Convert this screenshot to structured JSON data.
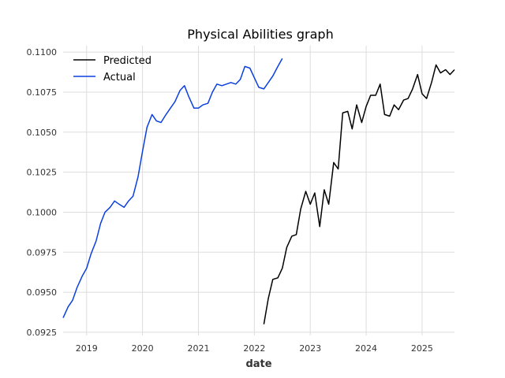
{
  "chart_data": {
    "type": "line",
    "title": "Physical Abilities graph",
    "xlabel": "date",
    "ylabel": "",
    "xlim": [
      2018.58,
      2025.58
    ],
    "ylim": [
      0.0923,
      0.1104
    ],
    "x_ticks": [
      2019,
      2020,
      2021,
      2022,
      2023,
      2024,
      2025
    ],
    "x_tick_labels": [
      "2019",
      "2020",
      "2021",
      "2022",
      "2023",
      "2024",
      "2025"
    ],
    "y_ticks": [
      0.0925,
      0.095,
      0.0975,
      0.1,
      0.1025,
      0.105,
      0.1075,
      0.11
    ],
    "y_tick_labels": [
      "0.0925",
      "0.0950",
      "0.0975",
      "0.1000",
      "0.1025",
      "0.1050",
      "0.1075",
      "0.1100"
    ],
    "grid": true,
    "legend_position": "top-left",
    "series": [
      {
        "name": "Predicted",
        "color": "#000000",
        "x": [
          2022.17,
          2022.25,
          2022.33,
          2022.42,
          2022.5,
          2022.58,
          2022.67,
          2022.75,
          2022.83,
          2022.92,
          2023.0,
          2023.08,
          2023.17,
          2023.25,
          2023.33,
          2023.42,
          2023.5,
          2023.58,
          2023.67,
          2023.75,
          2023.83,
          2023.92,
          2024.0,
          2024.08,
          2024.17,
          2024.25,
          2024.33,
          2024.42,
          2024.5,
          2024.58,
          2024.67,
          2024.75,
          2024.83,
          2024.92,
          2025.0,
          2025.08,
          2025.17,
          2025.25,
          2025.33,
          2025.42,
          2025.5,
          2025.58
        ],
        "y": [
          0.093,
          0.0946,
          0.0958,
          0.0959,
          0.0965,
          0.0978,
          0.0985,
          0.0986,
          0.1002,
          0.1013,
          0.1005,
          0.1012,
          0.0991,
          0.1014,
          0.1005,
          0.1031,
          0.1027,
          0.1062,
          0.1063,
          0.1052,
          0.1067,
          0.1056,
          0.1066,
          0.1073,
          0.1073,
          0.108,
          0.1061,
          0.106,
          0.1067,
          0.1064,
          0.107,
          0.1071,
          0.1077,
          0.1086,
          0.1074,
          0.1071,
          0.1081,
          0.1092,
          0.1087,
          0.1089,
          0.1086,
          0.1089
        ]
      },
      {
        "name": "Actual",
        "color": "#0b3fe0",
        "x": [
          2018.58,
          2018.67,
          2018.75,
          2018.83,
          2018.92,
          2019.0,
          2019.08,
          2019.17,
          2019.25,
          2019.33,
          2019.42,
          2019.5,
          2019.58,
          2019.67,
          2019.75,
          2019.83,
          2019.92,
          2020.0,
          2020.08,
          2020.17,
          2020.25,
          2020.33,
          2020.42,
          2020.5,
          2020.58,
          2020.67,
          2020.75,
          2020.83,
          2020.92,
          2021.0,
          2021.08,
          2021.17,
          2021.25,
          2021.33,
          2021.42,
          2021.5,
          2021.58,
          2021.67,
          2021.75,
          2021.83,
          2021.92,
          2022.0,
          2022.08,
          2022.17,
          2022.25,
          2022.33,
          2022.42,
          2022.5
        ],
        "y": [
          0.0934,
          0.0941,
          0.0945,
          0.0953,
          0.096,
          0.0965,
          0.0974,
          0.0982,
          0.0993,
          0.1,
          0.1003,
          0.1007,
          0.1005,
          0.1003,
          0.1007,
          0.101,
          0.1022,
          0.1038,
          0.1053,
          0.1061,
          0.1057,
          0.1056,
          0.1061,
          0.1065,
          0.1069,
          0.1076,
          0.1079,
          0.1072,
          0.1065,
          0.1065,
          0.1067,
          0.1068,
          0.1075,
          0.108,
          0.1079,
          0.108,
          0.1081,
          0.108,
          0.1083,
          0.1091,
          0.109,
          0.1084,
          0.1078,
          0.1077,
          0.1081,
          0.1085,
          0.1091,
          0.1096
        ]
      }
    ]
  }
}
